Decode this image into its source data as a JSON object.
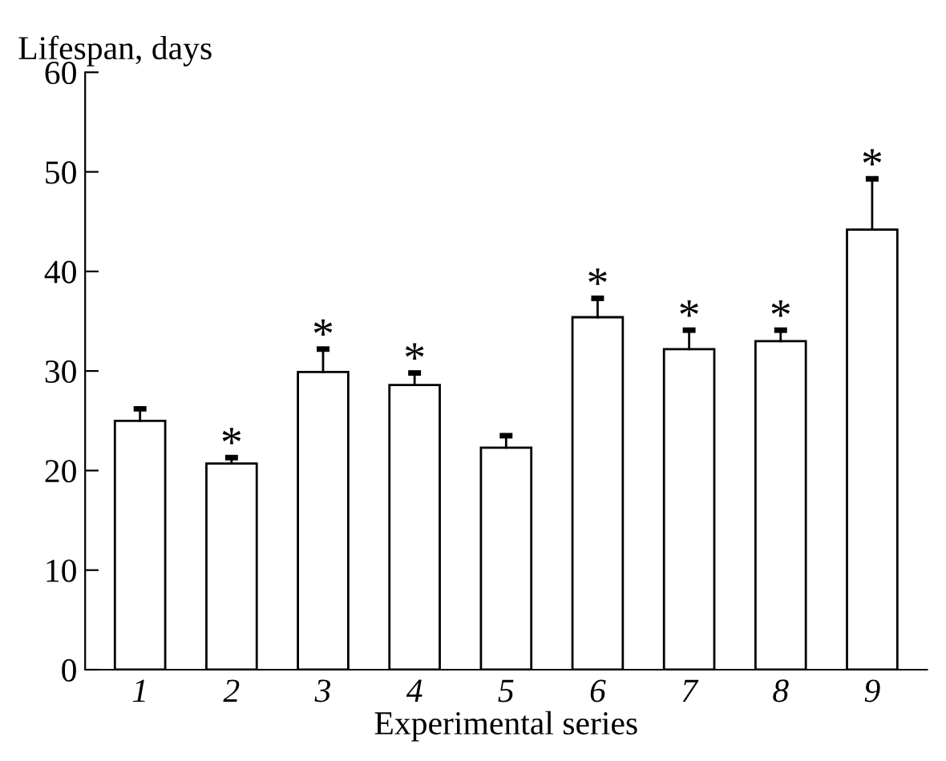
{
  "chart_data": {
    "type": "bar",
    "ylabel": "Lifespan, days",
    "xlabel": "Experimental series",
    "categories": [
      "1",
      "2",
      "3",
      "4",
      "5",
      "6",
      "7",
      "8",
      "9"
    ],
    "values": [
      25.0,
      20.7,
      29.9,
      28.6,
      22.3,
      35.4,
      32.2,
      33.0,
      44.2
    ],
    "errors": [
      [
        25.0,
        26.2
      ],
      [
        20.7,
        21.3
      ],
      [
        29.9,
        32.2
      ],
      [
        28.6,
        29.8
      ],
      [
        22.3,
        23.5
      ],
      [
        35.4,
        37.3
      ],
      [
        32.2,
        34.1
      ],
      [
        33.0,
        34.1
      ],
      [
        44.2,
        49.3
      ]
    ],
    "color": "#ffffff",
    "ylim": [
      0,
      60
    ],
    "yticks": [
      0,
      10,
      20,
      30,
      40,
      50,
      60
    ],
    "grid": false,
    "annotations": [
      {
        "text": "*",
        "x": "2",
        "y": 21.3
      },
      {
        "text": "*",
        "x": "3",
        "y": 32.2
      },
      {
        "text": "*",
        "x": "4",
        "y": 29.8
      },
      {
        "text": "*",
        "x": "6",
        "y": 37.3
      },
      {
        "text": "*",
        "x": "7",
        "y": 34.1
      },
      {
        "text": "*",
        "x": "8",
        "y": 34.1
      },
      {
        "text": "*",
        "x": "9",
        "y": 49.3
      }
    ]
  }
}
